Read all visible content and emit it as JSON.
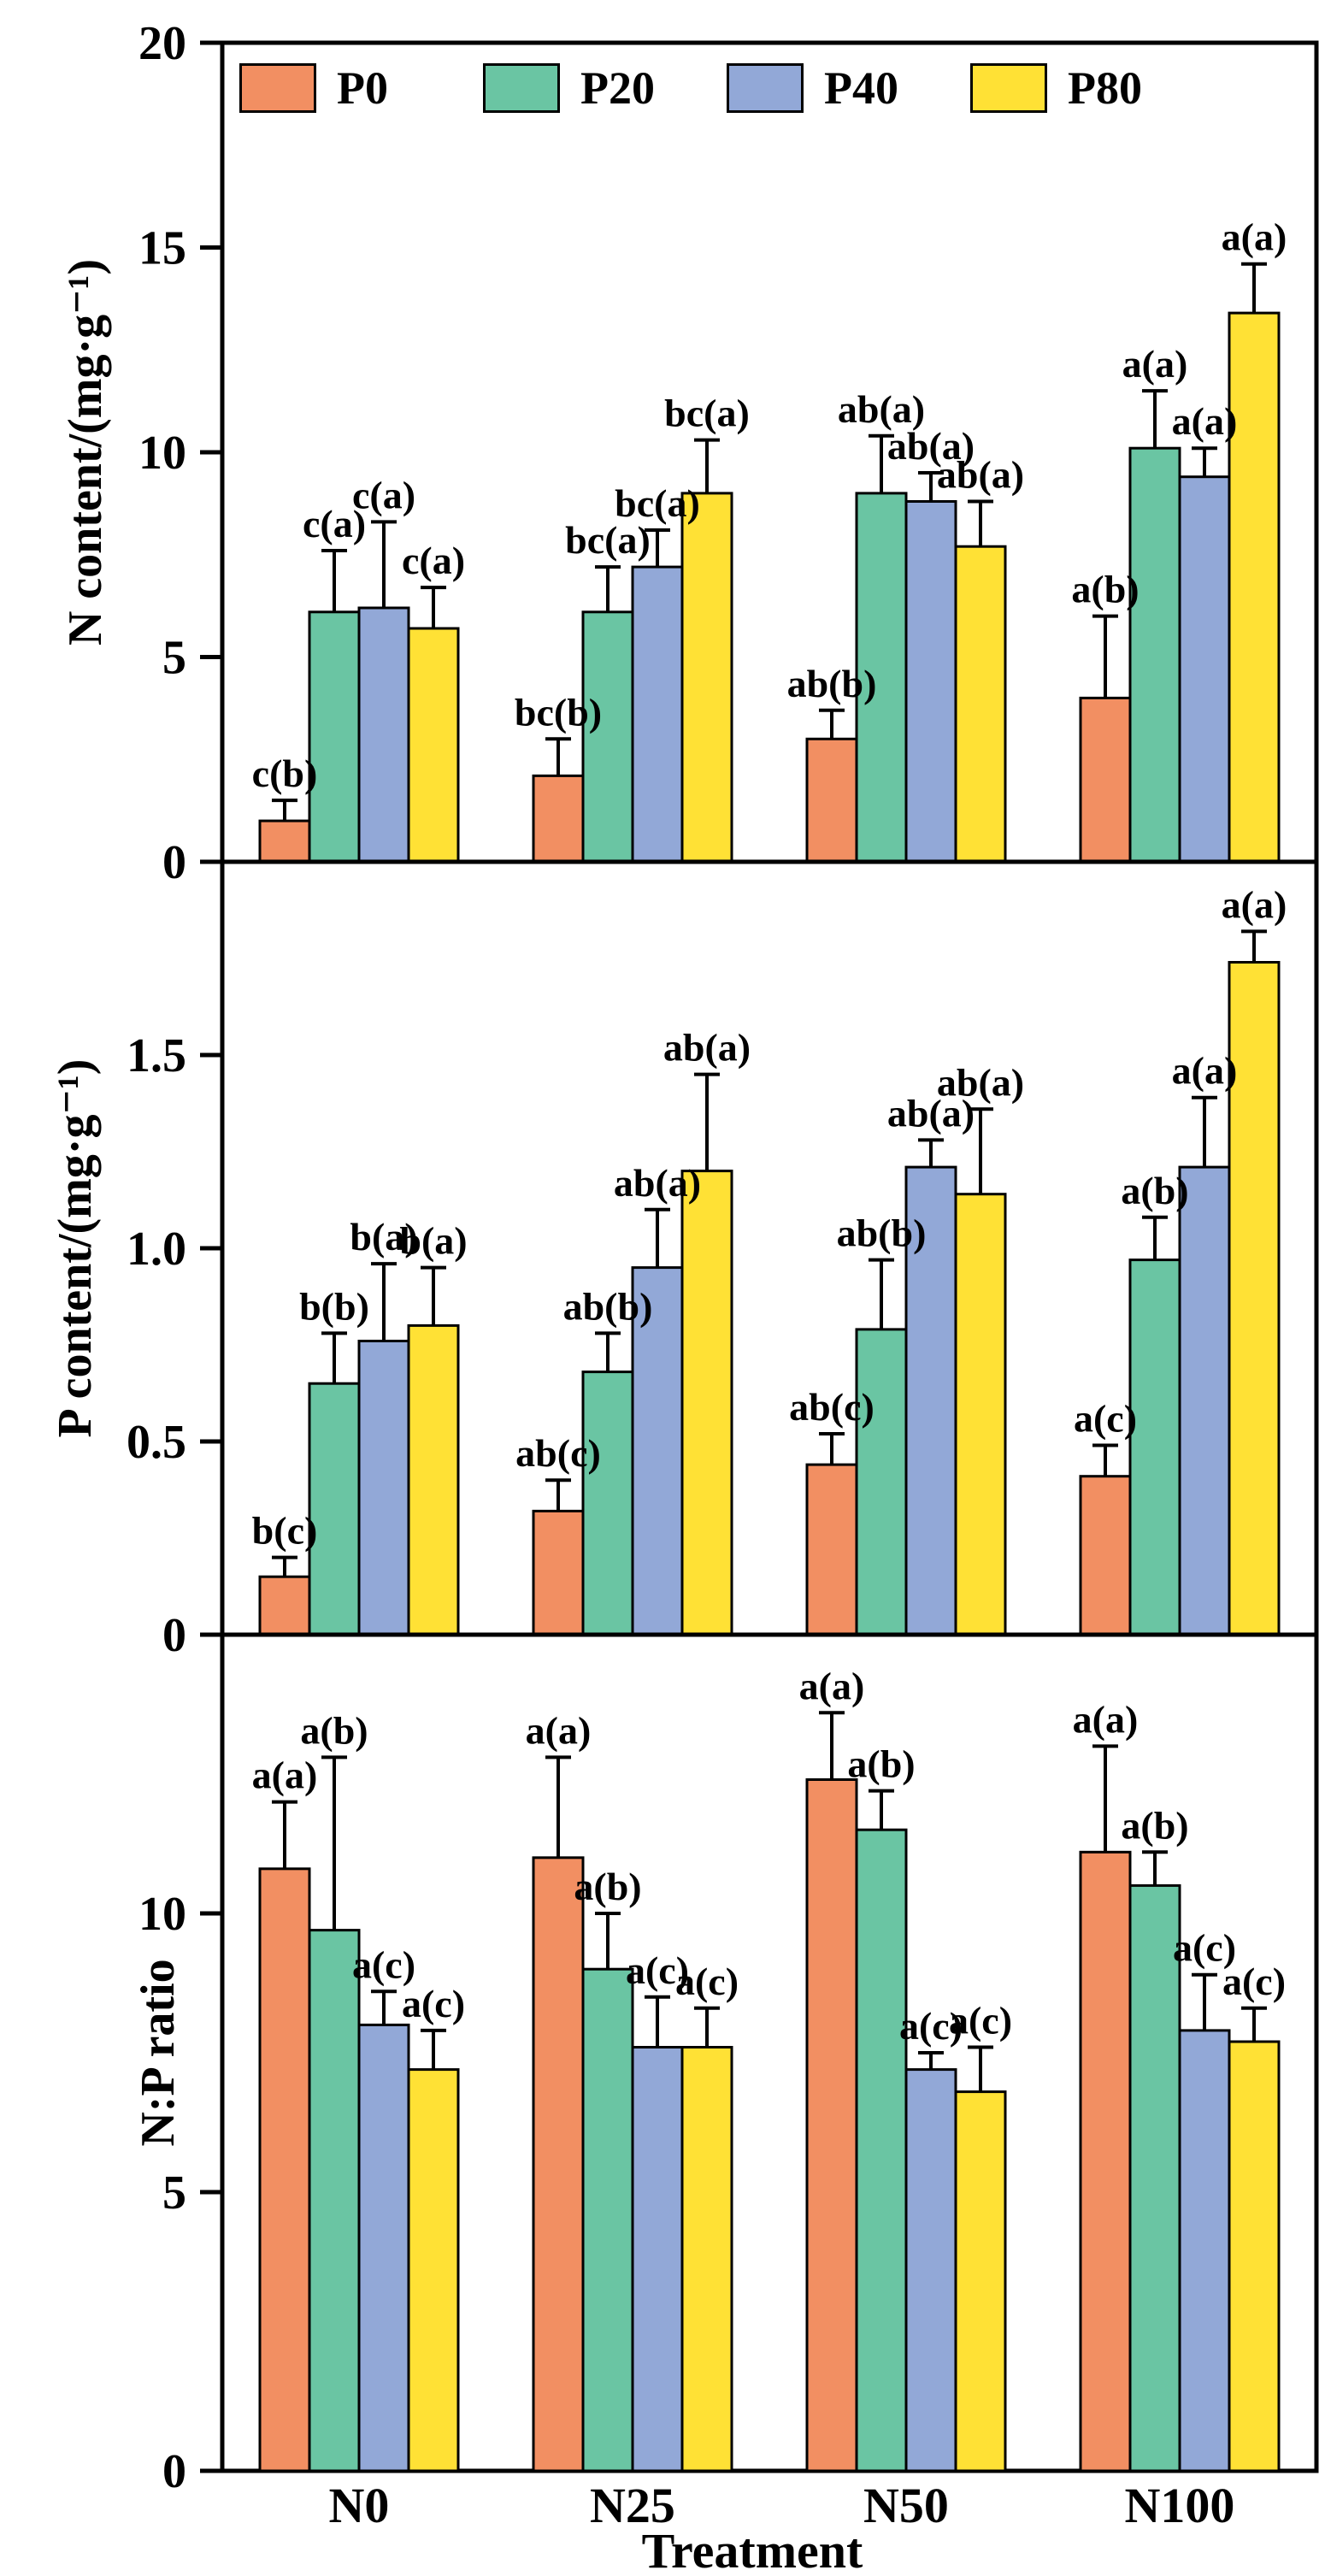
{
  "figure": {
    "x_axis_label": "Treatment",
    "background": "#ffffff",
    "text_color": "#000000"
  },
  "legend": {
    "position": "top-inside-first-panel",
    "items": [
      {
        "label": "P0",
        "color": "#F28F62"
      },
      {
        "label": "P20",
        "color": "#6AC5A3"
      },
      {
        "label": "P40",
        "color": "#92A8D7"
      },
      {
        "label": "P80",
        "color": "#FFE135"
      }
    ]
  },
  "chart_data": [
    {
      "type": "bar",
      "panel": "top",
      "ylabel": "N content/(mg·g⁻¹)",
      "categories": [
        "N0",
        "N25",
        "N50",
        "N100"
      ],
      "ylim": [
        0,
        20
      ],
      "yticks": [
        0,
        5,
        10,
        15,
        20
      ],
      "yticklabels": [
        "0",
        "5",
        "10",
        "15",
        "20"
      ],
      "grid": false,
      "series": [
        {
          "name": "P0",
          "color": "#F28F62",
          "values": [
            1.0,
            2.1,
            3.0,
            4.0
          ],
          "errors": [
            0.5,
            0.9,
            0.7,
            2.0
          ],
          "sig_labels": [
            "c(b)",
            "bc(b)",
            "ab(b)",
            "a(b)"
          ]
        },
        {
          "name": "P20",
          "color": "#6AC5A3",
          "values": [
            6.1,
            6.1,
            9.0,
            10.1
          ],
          "errors": [
            1.5,
            1.1,
            1.4,
            1.4
          ],
          "sig_labels": [
            "c(a)",
            "bc(a)",
            "ab(a)",
            "a(a)"
          ]
        },
        {
          "name": "P40",
          "color": "#92A8D7",
          "values": [
            6.2,
            7.2,
            8.8,
            9.4
          ],
          "errors": [
            2.1,
            0.9,
            0.7,
            0.7
          ],
          "sig_labels": [
            "c(a)",
            "bc(a)",
            "ab(a)",
            "a(a)"
          ]
        },
        {
          "name": "P80",
          "color": "#FFE135",
          "values": [
            5.7,
            9.0,
            7.7,
            13.4
          ],
          "errors": [
            1.0,
            1.3,
            1.1,
            1.2
          ],
          "sig_labels": [
            "c(a)",
            "bc(a)",
            "ab(a)",
            "a(a)"
          ]
        }
      ]
    },
    {
      "type": "bar",
      "panel": "middle",
      "ylabel": "P content/(mg·g⁻¹)",
      "categories": [
        "N0",
        "N25",
        "N50",
        "N100"
      ],
      "ylim": [
        0,
        2.0
      ],
      "yticks": [
        0,
        0.5,
        1.0,
        1.5
      ],
      "yticklabels": [
        "0",
        "0.5",
        "1.0",
        "1.5"
      ],
      "grid": false,
      "series": [
        {
          "name": "P0",
          "color": "#F28F62",
          "values": [
            0.15,
            0.32,
            0.44,
            0.41
          ],
          "errors": [
            0.05,
            0.08,
            0.08,
            0.08
          ],
          "sig_labels": [
            "b(c)",
            "ab(c)",
            "ab(c)",
            "a(c)"
          ]
        },
        {
          "name": "P20",
          "color": "#6AC5A3",
          "values": [
            0.65,
            0.68,
            0.79,
            0.97
          ],
          "errors": [
            0.13,
            0.1,
            0.18,
            0.11
          ],
          "sig_labels": [
            "b(b)",
            "ab(b)",
            "ab(b)",
            "a(b)"
          ]
        },
        {
          "name": "P40",
          "color": "#92A8D7",
          "values": [
            0.76,
            0.95,
            1.21,
            1.21
          ],
          "errors": [
            0.2,
            0.15,
            0.07,
            0.18
          ],
          "sig_labels": [
            "b(a)",
            "ab(a)",
            "ab(a)",
            "a(a)"
          ]
        },
        {
          "name": "P80",
          "color": "#FFE135",
          "values": [
            0.8,
            1.2,
            1.14,
            1.74
          ],
          "errors": [
            0.15,
            0.25,
            0.22,
            0.08
          ],
          "sig_labels": [
            "b(a)",
            "ab(a)",
            "ab(a)",
            "a(a)"
          ]
        }
      ]
    },
    {
      "type": "bar",
      "panel": "bottom",
      "ylabel": "N:P ratio",
      "categories": [
        "N0",
        "N25",
        "N50",
        "N100"
      ],
      "ylim": [
        0,
        15
      ],
      "yticks": [
        0,
        5,
        10
      ],
      "yticklabels": [
        "0",
        "5",
        "10"
      ],
      "grid": false,
      "series": [
        {
          "name": "P0",
          "color": "#F28F62",
          "values": [
            10.8,
            11.0,
            12.4,
            11.1
          ],
          "errors": [
            1.2,
            1.8,
            1.2,
            1.9
          ],
          "sig_labels": [
            "a(a)",
            "a(a)",
            "a(a)",
            "a(a)"
          ]
        },
        {
          "name": "P20",
          "color": "#6AC5A3",
          "values": [
            9.7,
            9.0,
            11.5,
            10.5
          ],
          "errors": [
            3.1,
            1.0,
            0.7,
            0.6
          ],
          "sig_labels": [
            "a(b)",
            "a(b)",
            "a(b)",
            "a(b)"
          ]
        },
        {
          "name": "P40",
          "color": "#92A8D7",
          "values": [
            8.0,
            7.6,
            7.2,
            7.9
          ],
          "errors": [
            0.6,
            0.9,
            0.3,
            1.0
          ],
          "sig_labels": [
            "a(c)",
            "a(c)",
            "a(c)",
            "a(c)"
          ]
        },
        {
          "name": "P80",
          "color": "#FFE135",
          "values": [
            7.2,
            7.6,
            6.8,
            7.7
          ],
          "errors": [
            0.7,
            0.7,
            0.8,
            0.6
          ],
          "sig_labels": [
            "a(c)",
            "a(c)",
            "a(c)",
            "a(c)"
          ]
        }
      ]
    }
  ]
}
